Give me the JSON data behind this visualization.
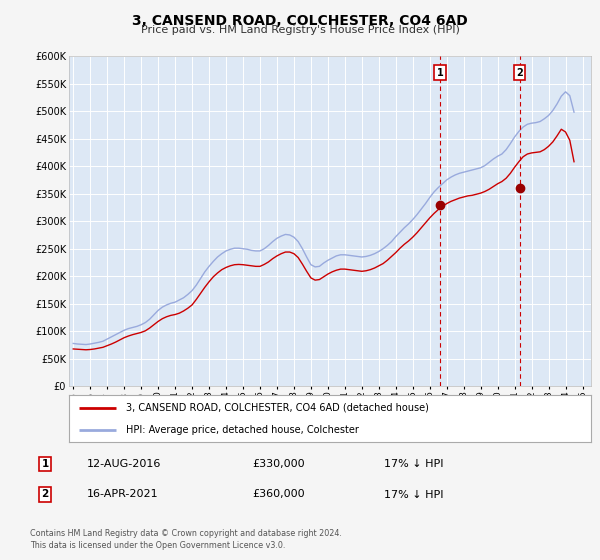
{
  "title": "3, CANSEND ROAD, COLCHESTER, CO4 6AD",
  "subtitle": "Price paid vs. HM Land Registry's House Price Index (HPI)",
  "ylim": [
    0,
    600000
  ],
  "yticks": [
    0,
    50000,
    100000,
    150000,
    200000,
    250000,
    300000,
    350000,
    400000,
    450000,
    500000,
    550000,
    600000
  ],
  "xlim_start": 1994.75,
  "xlim_end": 2025.5,
  "fig_bg_color": "#f5f5f5",
  "plot_bg_color": "#dde8f5",
  "grid_color": "#ffffff",
  "red_line_color": "#cc0000",
  "blue_line_color": "#99aadd",
  "marker1_x": 2016.617,
  "marker1_y": 330000,
  "marker2_x": 2021.29,
  "marker2_y": 360000,
  "vline1_x": 2016.617,
  "vline2_x": 2021.29,
  "sale1_date": "12-AUG-2016",
  "sale1_price": "£330,000",
  "sale1_hpi": "17% ↓ HPI",
  "sale2_date": "16-APR-2021",
  "sale2_price": "£360,000",
  "sale2_hpi": "17% ↓ HPI",
  "legend_line1": "3, CANSEND ROAD, COLCHESTER, CO4 6AD (detached house)",
  "legend_line2": "HPI: Average price, detached house, Colchester",
  "footer1": "Contains HM Land Registry data © Crown copyright and database right 2024.",
  "footer2": "This data is licensed under the Open Government Licence v3.0.",
  "hpi_years": [
    1995.0,
    1995.25,
    1995.5,
    1995.75,
    1996.0,
    1996.25,
    1996.5,
    1996.75,
    1997.0,
    1997.25,
    1997.5,
    1997.75,
    1998.0,
    1998.25,
    1998.5,
    1998.75,
    1999.0,
    1999.25,
    1999.5,
    1999.75,
    2000.0,
    2000.25,
    2000.5,
    2000.75,
    2001.0,
    2001.25,
    2001.5,
    2001.75,
    2002.0,
    2002.25,
    2002.5,
    2002.75,
    2003.0,
    2003.25,
    2003.5,
    2003.75,
    2004.0,
    2004.25,
    2004.5,
    2004.75,
    2005.0,
    2005.25,
    2005.5,
    2005.75,
    2006.0,
    2006.25,
    2006.5,
    2006.75,
    2007.0,
    2007.25,
    2007.5,
    2007.75,
    2008.0,
    2008.25,
    2008.5,
    2008.75,
    2009.0,
    2009.25,
    2009.5,
    2009.75,
    2010.0,
    2010.25,
    2010.5,
    2010.75,
    2011.0,
    2011.25,
    2011.5,
    2011.75,
    2012.0,
    2012.25,
    2012.5,
    2012.75,
    2013.0,
    2013.25,
    2013.5,
    2013.75,
    2014.0,
    2014.25,
    2014.5,
    2014.75,
    2015.0,
    2015.25,
    2015.5,
    2015.75,
    2016.0,
    2016.25,
    2016.5,
    2016.75,
    2017.0,
    2017.25,
    2017.5,
    2017.75,
    2018.0,
    2018.25,
    2018.5,
    2018.75,
    2019.0,
    2019.25,
    2019.5,
    2019.75,
    2020.0,
    2020.25,
    2020.5,
    2020.75,
    2021.0,
    2021.25,
    2021.5,
    2021.75,
    2022.0,
    2022.25,
    2022.5,
    2022.75,
    2023.0,
    2023.25,
    2023.5,
    2023.75,
    2024.0,
    2024.25,
    2024.5
  ],
  "hpi_values": [
    78000,
    77000,
    76500,
    76000,
    77000,
    78500,
    80000,
    82000,
    86000,
    90000,
    94000,
    98000,
    102000,
    105000,
    107000,
    109000,
    112000,
    116000,
    122000,
    130000,
    138000,
    144000,
    148000,
    151000,
    153000,
    157000,
    161000,
    167000,
    174000,
    184000,
    196000,
    208000,
    218000,
    227000,
    235000,
    241000,
    246000,
    249000,
    251000,
    251000,
    250000,
    249000,
    247000,
    246000,
    246000,
    250000,
    256000,
    263000,
    269000,
    273000,
    276000,
    275000,
    271000,
    263000,
    250000,
    235000,
    221000,
    217000,
    218000,
    224000,
    229000,
    233000,
    237000,
    239000,
    239000,
    238000,
    237000,
    236000,
    235000,
    236000,
    238000,
    241000,
    245000,
    250000,
    256000,
    263000,
    272000,
    280000,
    288000,
    295000,
    303000,
    312000,
    322000,
    332000,
    343000,
    353000,
    361000,
    368000,
    375000,
    380000,
    384000,
    387000,
    389000,
    391000,
    393000,
    395000,
    397000,
    401000,
    407000,
    413000,
    418000,
    422000,
    430000,
    441000,
    453000,
    463000,
    471000,
    476000,
    478000,
    479000,
    481000,
    486000,
    492000,
    501000,
    513000,
    527000,
    535000,
    528000,
    498000
  ],
  "red_years": [
    1995.0,
    1995.25,
    1995.5,
    1995.75,
    1996.0,
    1996.25,
    1996.5,
    1996.75,
    1997.0,
    1997.25,
    1997.5,
    1997.75,
    1998.0,
    1998.25,
    1998.5,
    1998.75,
    1999.0,
    1999.25,
    1999.5,
    1999.75,
    2000.0,
    2000.25,
    2000.5,
    2000.75,
    2001.0,
    2001.25,
    2001.5,
    2001.75,
    2002.0,
    2002.25,
    2002.5,
    2002.75,
    2003.0,
    2003.25,
    2003.5,
    2003.75,
    2004.0,
    2004.25,
    2004.5,
    2004.75,
    2005.0,
    2005.25,
    2005.5,
    2005.75,
    2006.0,
    2006.25,
    2006.5,
    2006.75,
    2007.0,
    2007.25,
    2007.5,
    2007.75,
    2008.0,
    2008.25,
    2008.5,
    2008.75,
    2009.0,
    2009.25,
    2009.5,
    2009.75,
    2010.0,
    2010.25,
    2010.5,
    2010.75,
    2011.0,
    2011.25,
    2011.5,
    2011.75,
    2012.0,
    2012.25,
    2012.5,
    2012.75,
    2013.0,
    2013.25,
    2013.5,
    2013.75,
    2014.0,
    2014.25,
    2014.5,
    2014.75,
    2015.0,
    2015.25,
    2015.5,
    2015.75,
    2016.0,
    2016.25,
    2016.5,
    2016.75,
    2017.0,
    2017.25,
    2017.5,
    2017.75,
    2018.0,
    2018.25,
    2018.5,
    2018.75,
    2019.0,
    2019.25,
    2019.5,
    2019.75,
    2020.0,
    2020.25,
    2020.5,
    2020.75,
    2021.0,
    2021.25,
    2021.5,
    2021.75,
    2022.0,
    2022.25,
    2022.5,
    2022.75,
    2023.0,
    2023.25,
    2023.5,
    2023.75,
    2024.0,
    2024.25,
    2024.5
  ],
  "red_values": [
    68000,
    67500,
    67000,
    66500,
    67000,
    68000,
    69500,
    71000,
    74000,
    77000,
    80500,
    84500,
    88500,
    91500,
    94000,
    96000,
    98000,
    101000,
    106000,
    112000,
    118000,
    123000,
    126500,
    129000,
    130500,
    133000,
    137000,
    142000,
    148000,
    158000,
    169000,
    180000,
    190000,
    199000,
    206000,
    212000,
    216000,
    219000,
    221000,
    221500,
    221000,
    220000,
    219000,
    218000,
    218000,
    221500,
    226000,
    232000,
    237000,
    241000,
    244000,
    244000,
    241000,
    234000,
    222000,
    209000,
    197000,
    193000,
    194000,
    199000,
    204000,
    208000,
    211000,
    213000,
    213000,
    212000,
    211000,
    210000,
    209000,
    210000,
    212000,
    215000,
    219000,
    223000,
    229000,
    236000,
    243000,
    251000,
    258000,
    264000,
    271000,
    279000,
    288000,
    297000,
    306000,
    314000,
    321000,
    327000,
    332000,
    336000,
    339000,
    342000,
    344000,
    346000,
    347000,
    349000,
    351000,
    354000,
    358000,
    363000,
    368000,
    372000,
    378000,
    387000,
    398000,
    408000,
    417000,
    422000,
    424000,
    425000,
    426000,
    430000,
    436000,
    444000,
    455000,
    467000,
    462000,
    447000,
    408000
  ]
}
